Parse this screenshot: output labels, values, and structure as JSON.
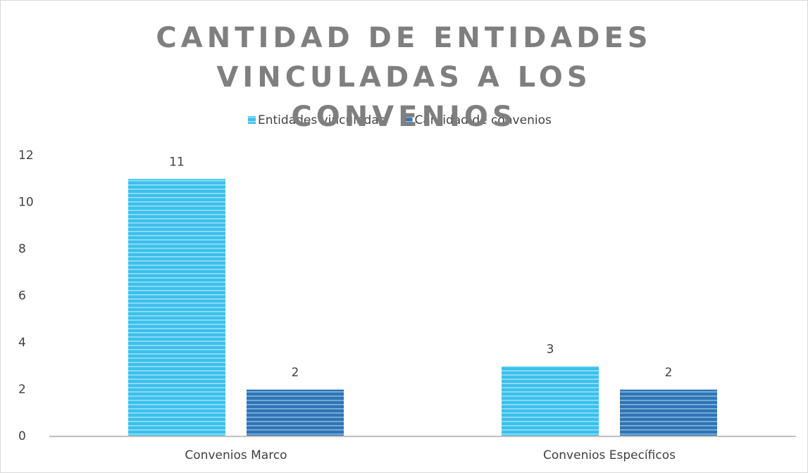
{
  "chart_data": {
    "type": "bar",
    "title": "CANTIDAD DE ENTIDADES VINCULADAS A LOS CONVENIOS",
    "categories": [
      "Convenios Marco",
      "Convenios Específicos"
    ],
    "series": [
      {
        "name": "Entidades vinculadas",
        "color": "#3cc0ec",
        "values": [
          11,
          3
        ]
      },
      {
        "name": "Cantidad de convenios",
        "color": "#2e75b6",
        "values": [
          2,
          2
        ]
      }
    ],
    "ylim": [
      0,
      12
    ],
    "yticks": [
      0,
      2,
      4,
      6,
      8,
      10,
      12
    ],
    "grid": false,
    "legend": "top"
  }
}
